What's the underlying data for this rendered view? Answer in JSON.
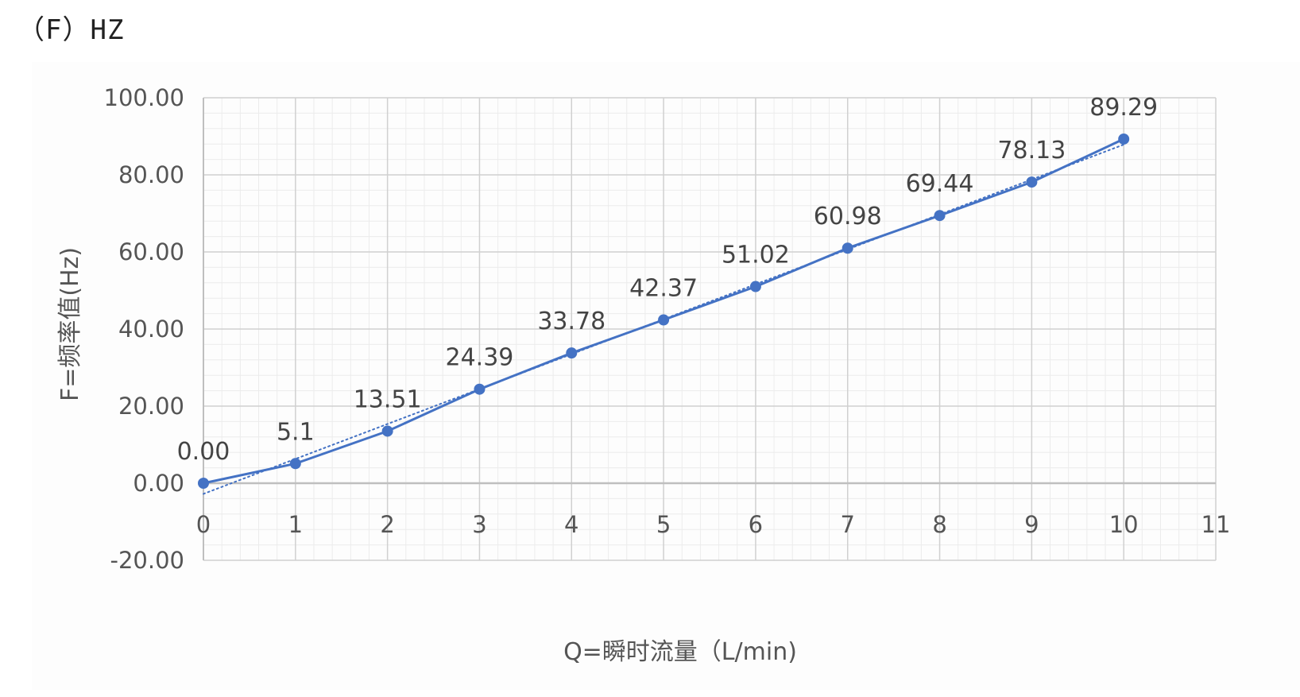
{
  "heading": "（F）HZ",
  "chart_data": {
    "type": "line",
    "x": [
      0,
      1,
      2,
      3,
      4,
      5,
      6,
      7,
      8,
      9,
      10
    ],
    "series": [
      {
        "values": [
          0.0,
          5.1,
          13.51,
          24.39,
          33.78,
          42.37,
          51.02,
          60.98,
          69.44,
          78.13,
          89.29
        ],
        "data_labels": [
          "0.00",
          "5.1",
          "13.51",
          "24.39",
          "33.78",
          "42.37",
          "51.02",
          "60.98",
          "69.44",
          "78.13",
          "89.29"
        ]
      }
    ],
    "trendline": {
      "type": "linear",
      "style": "dotted"
    },
    "xlabel": "Q=瞬时流量（L/min)",
    "ylabel": "F=频率值(Hz)",
    "xlim": [
      0,
      11
    ],
    "ylim": [
      -20,
      100
    ],
    "x_ticks": [
      "0",
      "1",
      "2",
      "3",
      "4",
      "5",
      "6",
      "7",
      "8",
      "9",
      "10",
      "11"
    ],
    "y_ticks": [
      "-20.00",
      "0.00",
      "20.00",
      "40.00",
      "60.00",
      "80.00",
      "100.00"
    ],
    "grid": true,
    "minor_grid": true,
    "legend": "none",
    "colors": {
      "series": "#4472C4",
      "trendline": "#4472C4",
      "major_grid": "#d0d0d0",
      "minor_grid": "#ececec",
      "zero_axis": "#bfbfbf"
    }
  }
}
